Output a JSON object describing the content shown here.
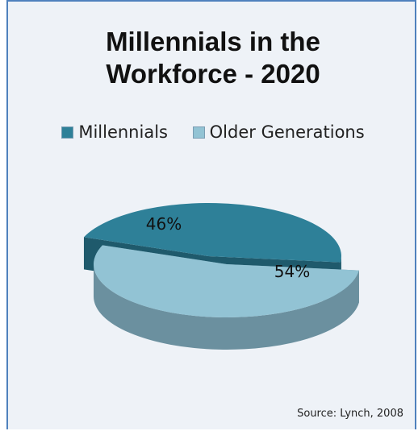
{
  "chart_data": {
    "type": "pie",
    "title_lines": [
      "Millennials in the",
      "Workforce - 2020"
    ],
    "slices": [
      {
        "name": "Millennials",
        "value": 46,
        "label": "46%",
        "color": "#2e8098",
        "shade": "#1f5a6c"
      },
      {
        "name": "Older Generations",
        "value": 54,
        "label": "54%",
        "color": "#92c3d4",
        "shade": "#6b909f"
      }
    ],
    "legend_position": "top",
    "exploded": true,
    "three_d": true
  },
  "source": "Source: Lynch, 2008"
}
